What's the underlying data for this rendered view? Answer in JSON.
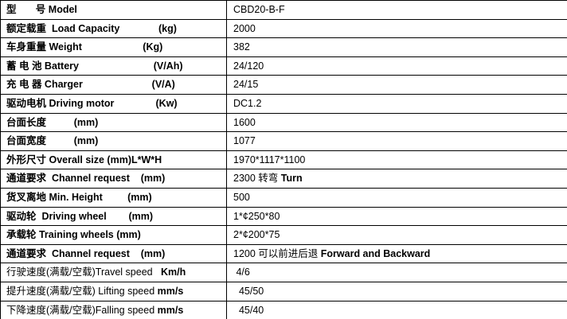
{
  "page": {
    "background_color": "#ffffff",
    "border_color": "#000000",
    "text_color": "#000000"
  },
  "spec_table": {
    "model_value": "CBD20-B-F",
    "rows": [
      {
        "label": [
          {
            "text": "型       号 Model",
            "bold": true
          }
        ],
        "value": [
          {
            "text": "CBD20-B-F",
            "bold": false
          }
        ]
      },
      {
        "label": [
          {
            "text": "额定载重  Load Capacity              (kg)",
            "bold": true
          }
        ],
        "value": [
          {
            "text": "2000",
            "bold": false
          }
        ]
      },
      {
        "label": [
          {
            "text": "车身重量 Weight                      (Kg)",
            "bold": true
          }
        ],
        "value": [
          {
            "text": "382",
            "bold": false
          }
        ]
      },
      {
        "label": [
          {
            "text": "蓄 电 池 Battery                           (V/Ah)",
            "bold": true
          }
        ],
        "value": [
          {
            "text": "24/120",
            "bold": false
          }
        ]
      },
      {
        "label": [
          {
            "text": "充 电 器 Charger                         (V/A)",
            "bold": true
          }
        ],
        "value": [
          {
            "text": "24/15",
            "bold": false
          }
        ]
      },
      {
        "label": [
          {
            "text": "驱动电机 Driving motor               (Kw)",
            "bold": true
          }
        ],
        "value": [
          {
            "text": "DC1.2",
            "bold": false
          }
        ]
      },
      {
        "label": [
          {
            "text": "台面长度          (mm)",
            "bold": true
          }
        ],
        "value": [
          {
            "text": "1600",
            "bold": false
          }
        ]
      },
      {
        "label": [
          {
            "text": "台面宽度          (mm)",
            "bold": true
          }
        ],
        "value": [
          {
            "text": "1077",
            "bold": false
          }
        ]
      },
      {
        "label": [
          {
            "text": "外形尺寸 Overall size (mm)L*W*H",
            "bold": true
          }
        ],
        "value": [
          {
            "text": "1970*1117*1100",
            "bold": false
          }
        ]
      },
      {
        "label": [
          {
            "text": "通道要求  Channel request    (mm)",
            "bold": true
          }
        ],
        "value": [
          {
            "text": "2300 转弯 ",
            "bold": false
          },
          {
            "text": "Turn",
            "bold": true
          }
        ]
      },
      {
        "label": [
          {
            "text": "货叉离地 Min. Height         (mm)",
            "bold": true
          }
        ],
        "value": [
          {
            "text": "500",
            "bold": false
          }
        ]
      },
      {
        "label": [
          {
            "text": "驱动轮  Driving wheel        (mm)",
            "bold": true
          }
        ],
        "value": [
          {
            "text": "1*¢250*80",
            "bold": false
          }
        ]
      },
      {
        "label": [
          {
            "text": "承载轮 Training wheels (mm)",
            "bold": true
          }
        ],
        "value": [
          {
            "text": "2*¢200*75",
            "bold": false
          }
        ]
      },
      {
        "label": [
          {
            "text": "通道要求  Channel request    (mm)",
            "bold": true
          }
        ],
        "value": [
          {
            "text": "1200 可以前进后退 ",
            "bold": false
          },
          {
            "text": "Forward and Backward",
            "bold": true
          }
        ]
      },
      {
        "label": [
          {
            "text": "行驶速度(满载/空载)Travel speed",
            "bold": false
          },
          {
            "text": "   Km/h",
            "bold": true
          }
        ],
        "value": [
          {
            "text": " 4/6",
            "bold": false
          }
        ]
      },
      {
        "label": [
          {
            "text": "提升速度(满载/空载) Lifting speed ",
            "bold": false
          },
          {
            "text": "mm/s",
            "bold": true
          }
        ],
        "value": [
          {
            "text": "  45/50",
            "bold": false
          }
        ]
      },
      {
        "label": [
          {
            "text": "下降速度(满载/空载)Falling speed ",
            "bold": false
          },
          {
            "text": "mm/s",
            "bold": true
          }
        ],
        "value": [
          {
            "text": "  45/40",
            "bold": false
          }
        ]
      }
    ]
  }
}
